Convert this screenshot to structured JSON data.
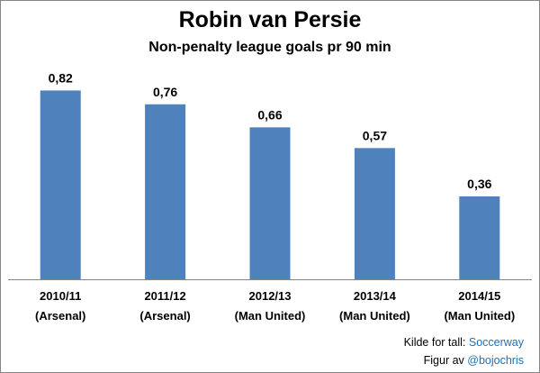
{
  "chart_data": {
    "type": "bar",
    "title": "Robin van Persie",
    "subtitle": "Non-penalty league goals pr 90 min",
    "categories": [
      [
        "2010/11",
        "(Arsenal)"
      ],
      [
        "2011/12",
        "(Arsenal)"
      ],
      [
        "2012/13",
        "(Man United)"
      ],
      [
        "2013/14",
        "(Man United)"
      ],
      [
        "2014/15",
        "(Man United)"
      ]
    ],
    "values": [
      0.82,
      0.76,
      0.66,
      0.57,
      0.36
    ],
    "value_labels": [
      "0,82",
      "0,76",
      "0,66",
      "0,57",
      "0,36"
    ],
    "ylim": [
      0,
      0.9
    ],
    "bar_color": "#4f81bd",
    "grid": false,
    "legend": "none"
  },
  "credits": {
    "line1_prefix": "Kilde for tall: ",
    "line1_link": "Soccerway",
    "line2_prefix": "Figur av ",
    "line2_link": "@bojochris"
  }
}
